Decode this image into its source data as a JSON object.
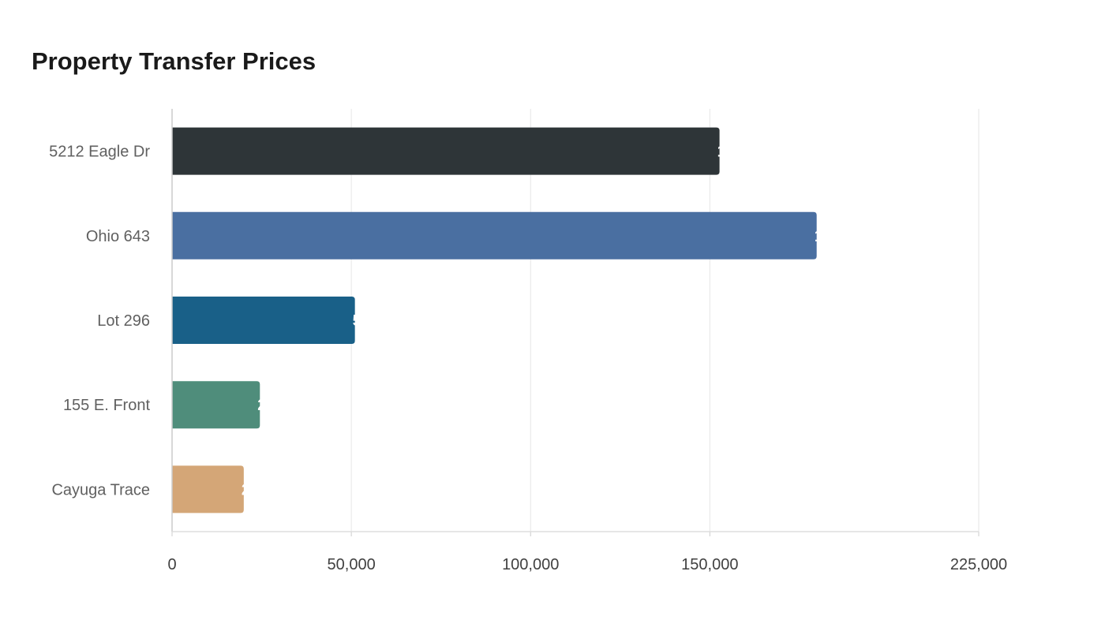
{
  "chart_data": {
    "type": "bar",
    "orientation": "horizontal",
    "title": "Property Transfer Prices",
    "categories": [
      "5212 Eagle Dr",
      "Ohio 643",
      "Lot 296",
      "155 E. Front",
      "Cayuga Trace"
    ],
    "values": [
      152700,
      179800,
      51000,
      24500,
      20000
    ],
    "value_labels": [
      "1",
      "1",
      "5",
      "2",
      "2"
    ],
    "colors": [
      "#2e3538",
      "#4a6fa1",
      "#196088",
      "#4f8d7b",
      "#d4a677"
    ],
    "xlim": [
      0,
      225000
    ],
    "xticks": [
      0,
      50000,
      100000,
      150000,
      225000
    ],
    "xtick_labels": [
      "0",
      "50,000",
      "100,000",
      "150,000",
      "225,000"
    ],
    "xlabel": "",
    "ylabel": "",
    "grid": true,
    "legend": "none"
  }
}
